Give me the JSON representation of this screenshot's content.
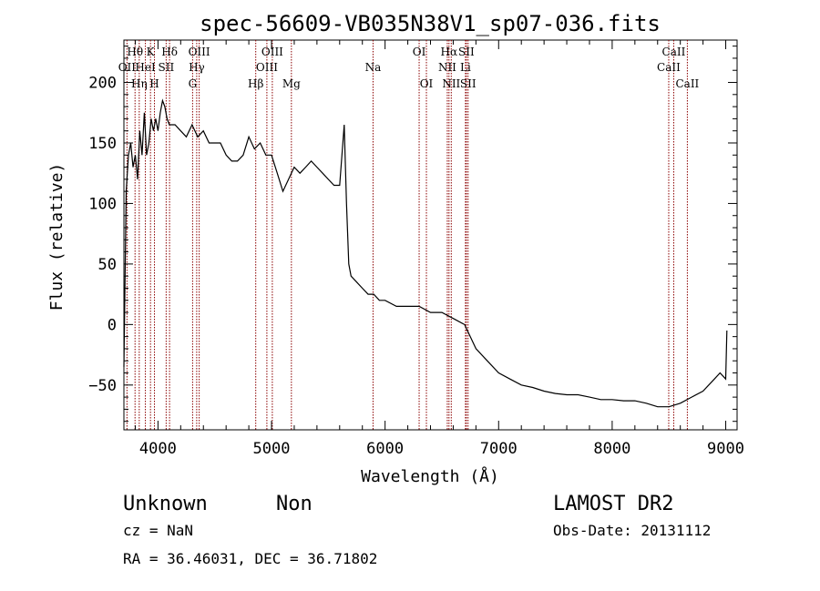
{
  "chart_data": {
    "type": "line",
    "title": "spec-56609-VB035N38V1_sp07-036.fits",
    "xlabel": "Wavelength (Å)",
    "ylabel": "Flux (relative)",
    "xlim": [
      3700,
      9100
    ],
    "ylim": [
      -87,
      235
    ],
    "xticks": [
      4000,
      5000,
      6000,
      7000,
      8000,
      9000
    ],
    "yticks": [
      -50,
      0,
      50,
      100,
      150,
      200
    ],
    "grid": false,
    "series": [
      {
        "x": [
          3700,
          3720,
          3740,
          3760,
          3780,
          3800,
          3820,
          3840,
          3860,
          3880,
          3900,
          3920,
          3940,
          3960,
          3980,
          4000,
          4020,
          4040,
          4060,
          4080,
          4100,
          4150,
          4200,
          4250,
          4300,
          4350,
          4400,
          4450,
          4500,
          4550,
          4600,
          4650,
          4700,
          4750,
          4800,
          4850,
          4900,
          4950,
          5000,
          5050,
          5100,
          5150,
          5200,
          5250,
          5300,
          5350,
          5400,
          5450,
          5500,
          5550,
          5600,
          5640,
          5660,
          5680,
          5700,
          5750,
          5800,
          5850,
          5900,
          5950,
          6000,
          6100,
          6200,
          6300,
          6400,
          6500,
          6600,
          6700,
          6800,
          6900,
          7000,
          7100,
          7200,
          7300,
          7400,
          7500,
          7600,
          7700,
          7800,
          7900,
          8000,
          8100,
          8200,
          8300,
          8400,
          8500,
          8600,
          8700,
          8800,
          8900,
          8950,
          9000,
          9010
        ],
        "y": [
          -35,
          110,
          140,
          150,
          130,
          140,
          120,
          160,
          140,
          175,
          140,
          150,
          170,
          160,
          170,
          160,
          175,
          185,
          180,
          170,
          165,
          165,
          160,
          155,
          165,
          155,
          160,
          150,
          150,
          150,
          140,
          135,
          135,
          140,
          155,
          145,
          150,
          140,
          140,
          125,
          110,
          120,
          130,
          125,
          130,
          135,
          130,
          125,
          120,
          115,
          115,
          165,
          100,
          50,
          40,
          35,
          30,
          25,
          25,
          20,
          20,
          15,
          15,
          15,
          10,
          10,
          5,
          0,
          -20,
          -30,
          -40,
          -45,
          -50,
          -52,
          -55,
          -57,
          -58,
          -58,
          -60,
          -62,
          -62,
          -63,
          -63,
          -65,
          -68,
          -68,
          -65,
          -60,
          -55,
          -45,
          -40,
          -45,
          -5
        ]
      }
    ],
    "lines": [
      {
        "label": "Hθ",
        "x": 3798,
        "row": 1
      },
      {
        "label": "OII",
        "x": 3727,
        "row": 2
      },
      {
        "label": "Hη",
        "x": 3835,
        "row": 3
      },
      {
        "label": "HeI",
        "x": 3889,
        "row": 2
      },
      {
        "label": "K",
        "x": 3934,
        "row": 1
      },
      {
        "label": "H",
        "x": 3969,
        "row": 3
      },
      {
        "label": "SII",
        "x": 4072,
        "row": 2
      },
      {
        "label": "Hδ",
        "x": 4102,
        "row": 1
      },
      {
        "label": "G",
        "x": 4305,
        "row": 3
      },
      {
        "label": "Hγ",
        "x": 4341,
        "row": 2
      },
      {
        "label": "OIII",
        "x": 4363,
        "row": 1
      },
      {
        "label": "Hβ",
        "x": 4861,
        "row": 3
      },
      {
        "label": "OIII",
        "x": 4959,
        "row": 2
      },
      {
        "label": "OIII",
        "x": 5007,
        "row": 1
      },
      {
        "label": "Mg",
        "x": 5175,
        "row": 3
      },
      {
        "label": "Na",
        "x": 5894,
        "row": 2
      },
      {
        "label": "OI",
        "x": 6300,
        "row": 1
      },
      {
        "label": "OI",
        "x": 6364,
        "row": 3
      },
      {
        "label": "NII",
        "x": 6548,
        "row": 2
      },
      {
        "label": "Hα",
        "x": 6563,
        "row": 1
      },
      {
        "label": "NII",
        "x": 6583,
        "row": 3
      },
      {
        "label": "Li",
        "x": 6708,
        "row": 2
      },
      {
        "label": "SII",
        "x": 6716,
        "row": 1
      },
      {
        "label": "SII",
        "x": 6731,
        "row": 3
      },
      {
        "label": "CaII",
        "x": 8498,
        "row": 2
      },
      {
        "label": "CaII",
        "x": 8542,
        "row": 1
      },
      {
        "label": "CaII",
        "x": 8662,
        "row": 3
      }
    ],
    "line_color": "#8b0000"
  },
  "info": {
    "class": "Unknown",
    "subclass": "Non",
    "survey": "LAMOST DR2",
    "cz": "cz = NaN",
    "obs_date": "Obs-Date: 20131112",
    "radec": "RA =  36.46031, DEC =  36.71802"
  }
}
